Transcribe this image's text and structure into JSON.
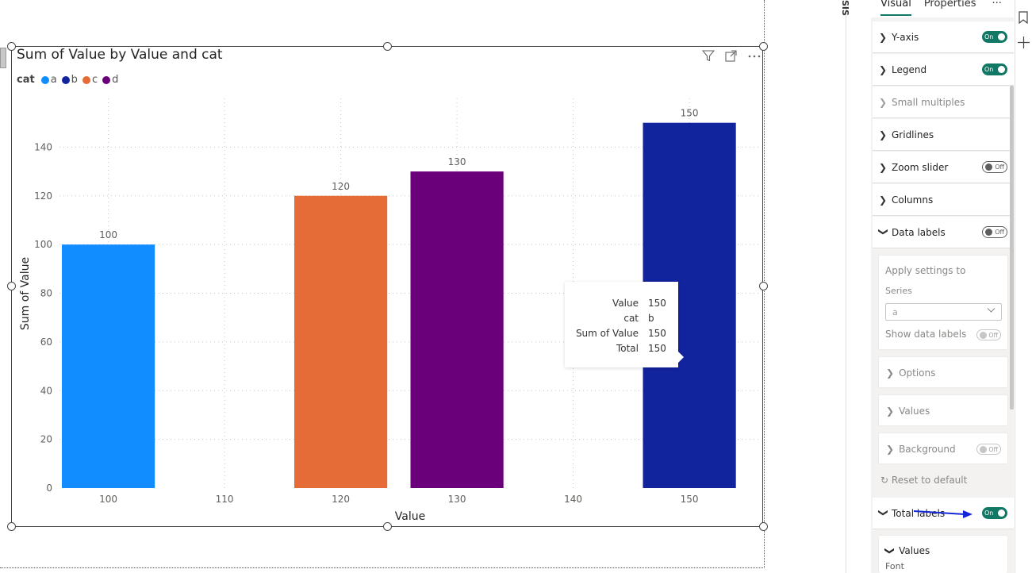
{
  "visual": {
    "title": "Sum of Value by Value and cat"
  },
  "legend": {
    "title": "cat",
    "items": [
      {
        "label": "a",
        "color": "#118DFF"
      },
      {
        "label": "b",
        "color": "#12239E"
      },
      {
        "label": "c",
        "color": "#E66C37"
      },
      {
        "label": "d",
        "color": "#6B007B"
      }
    ]
  },
  "chart_data": {
    "type": "bar",
    "title": "Sum of Value by Value and cat",
    "xlabel": "Value",
    "ylabel": "Sum of Value",
    "xlim": [
      96,
      156
    ],
    "ylim": [
      0,
      160
    ],
    "x_ticks": [
      100,
      110,
      120,
      130,
      140,
      150
    ],
    "y_ticks": [
      0,
      20,
      40,
      60,
      80,
      100,
      120,
      140
    ],
    "grid": true,
    "legend_position": "top-left",
    "bars": [
      {
        "x": 100,
        "value": 100,
        "label": "100",
        "series": "a",
        "color": "#118DFF"
      },
      {
        "x": 120,
        "value": 120,
        "label": "120",
        "series": "c",
        "color": "#E66C37"
      },
      {
        "x": 130,
        "value": 130,
        "label": "130",
        "series": "d",
        "color": "#6B007B"
      },
      {
        "x": 150,
        "value": 150,
        "label": "150",
        "series": "b",
        "color": "#12239E"
      }
    ]
  },
  "tooltip": {
    "rows": [
      {
        "key": "Value",
        "value": "150"
      },
      {
        "key": "cat",
        "value": "b"
      },
      {
        "key": "Sum of Value",
        "value": "150"
      },
      {
        "key": "Total",
        "value": "150"
      }
    ]
  },
  "pane": {
    "vertical_text": "SIS",
    "tabs": [
      "Visual",
      "Properties"
    ],
    "more": "···",
    "sections": [
      {
        "label": "Y-axis",
        "toggle": "On"
      },
      {
        "label": "Legend",
        "toggle": "On"
      },
      {
        "label": "Small multiples",
        "toggle": ""
      },
      {
        "label": "Gridlines",
        "toggle": ""
      },
      {
        "label": "Zoom slider",
        "toggle": "Off"
      },
      {
        "label": "Columns",
        "toggle": ""
      },
      {
        "label": "Data labels",
        "toggle": "Off"
      }
    ],
    "apply_settings": {
      "title": "Apply settings to",
      "series_label": "Series",
      "series_value": "a",
      "show_data_labels": "Show data labels",
      "show_toggle": "Off"
    },
    "sub_sections": [
      {
        "label": "Options",
        "toggle": ""
      },
      {
        "label": "Values",
        "toggle": ""
      },
      {
        "label": "Background",
        "toggle": "Off"
      }
    ],
    "reset": "Reset to default",
    "total_labels": {
      "label": "Total labels",
      "toggle": "On"
    },
    "values_section": {
      "label": "Values",
      "next": "Font"
    }
  }
}
